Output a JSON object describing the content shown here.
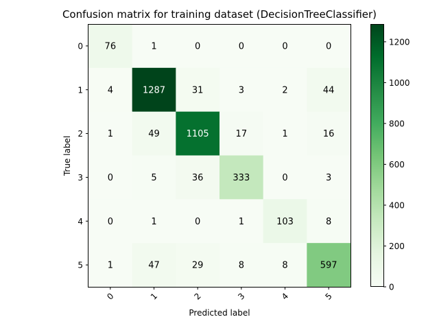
{
  "chart_data": {
    "type": "heatmap",
    "title": "Confusion matrix for training dataset (DecisionTreeClassifier)",
    "xlabel": "Predicted label",
    "ylabel": "True label",
    "x_categories": [
      "0",
      "1",
      "2",
      "3",
      "4",
      "5"
    ],
    "y_categories": [
      "0",
      "1",
      "2",
      "3",
      "4",
      "5"
    ],
    "matrix": [
      [
        76,
        1,
        0,
        0,
        0,
        0
      ],
      [
        4,
        1287,
        31,
        3,
        2,
        44
      ],
      [
        1,
        49,
        1105,
        17,
        1,
        16
      ],
      [
        0,
        5,
        36,
        333,
        0,
        3
      ],
      [
        0,
        1,
        0,
        1,
        103,
        8
      ],
      [
        1,
        47,
        29,
        8,
        8,
        597
      ]
    ],
    "colormap": "Greens",
    "value_range": [
      0,
      1287
    ],
    "colorbar": {
      "ticks": [
        0,
        200,
        400,
        600,
        800,
        1000,
        1200
      ],
      "tick_labels": [
        "0",
        "200",
        "400",
        "600",
        "800",
        "1000",
        "1200"
      ]
    },
    "x_tick_rotation_deg": 45,
    "grid": false,
    "colorbar_placement": "right"
  }
}
